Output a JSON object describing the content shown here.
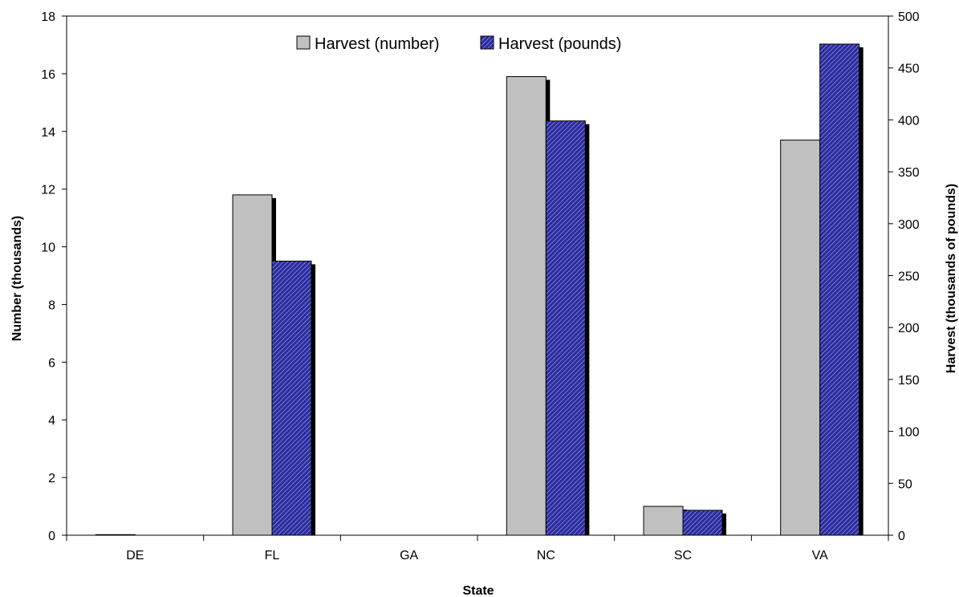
{
  "chart_data": {
    "type": "bar",
    "title": "",
    "xlabel": "State",
    "ylabel": "Number (thousands)",
    "y2label": "Harvest (thousands of pounds)",
    "categories": [
      "DE",
      "FL",
      "GA",
      "NC",
      "SC",
      "VA"
    ],
    "ylim": [
      0,
      18
    ],
    "y2lim": [
      0,
      500
    ],
    "yticks": [
      "0",
      "2",
      "4",
      "6",
      "8",
      "10",
      "12",
      "14",
      "16",
      "18"
    ],
    "y2ticks": [
      "0",
      "50",
      "100",
      "150",
      "200",
      "250",
      "300",
      "350",
      "400",
      "450",
      "500"
    ],
    "legend_position": "top-center",
    "grid": false,
    "series": [
      {
        "name": "Harvest (number)",
        "axis": "left",
        "color": "#c0c0c0",
        "values": [
          0.02,
          11.8,
          0,
          15.9,
          1.0,
          13.7
        ]
      },
      {
        "name": "Harvest (pounds)",
        "axis": "right",
        "color": "#2b2b9e",
        "pattern": "diagonal-hatch",
        "values": [
          0,
          264,
          0,
          399,
          24,
          473
        ]
      }
    ]
  }
}
